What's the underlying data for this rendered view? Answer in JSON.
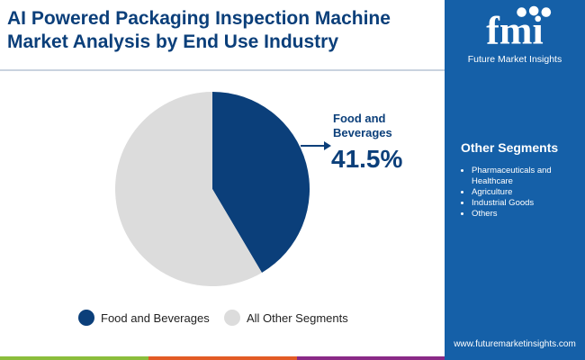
{
  "title": [
    "AI Powered Packaging Inspection Machine",
    "Market Analysis by End Use Industry"
  ],
  "brand": {
    "logo_text": "fmi",
    "name": "Future Market Insights",
    "url": "www.futuremarketinsights.com"
  },
  "sidebar": {
    "title": "Other Segments",
    "items": [
      "Pharmaceuticals and Healthcare",
      "Agriculture",
      "Industrial Goods",
      "Others"
    ]
  },
  "callout": {
    "label": "Food and Beverages",
    "value": "41.5%"
  },
  "colors": {
    "primary": "#0b3f7a",
    "other": "#dcdcdc",
    "panel": "#1560a8",
    "bars": [
      "#8bbd3c",
      "#e25b26",
      "#8a2a87"
    ]
  },
  "chart_data": {
    "type": "pie",
    "title": "AI Powered Packaging Inspection Machine Market Analysis by End Use Industry",
    "categories": [
      "Food and Beverages",
      "All Other Segments"
    ],
    "values": [
      41.5,
      58.5
    ],
    "legend": "bottom",
    "colors": [
      "#0b3f7a",
      "#dcdcdc"
    ]
  }
}
